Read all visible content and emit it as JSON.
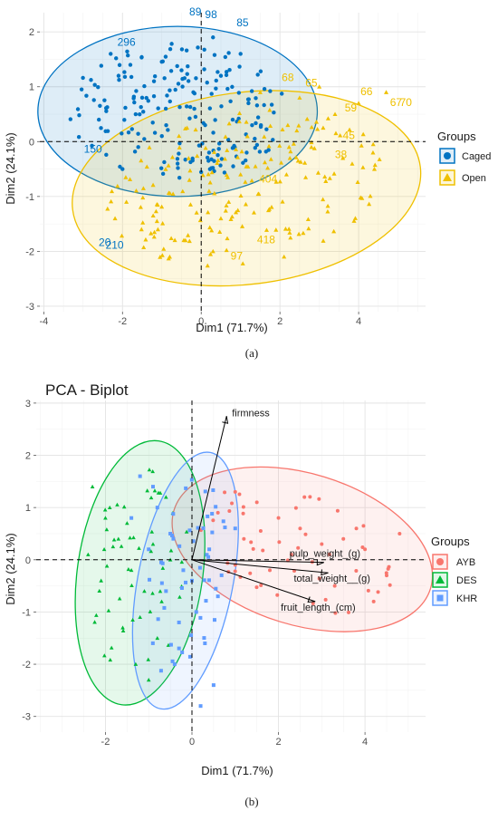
{
  "chart_data": [
    {
      "panel": "a",
      "type": "scatter",
      "title": "",
      "caption": "(a)",
      "xlabel": "Dim1 (71.7%)",
      "ylabel": "Dim2 (24.1%)",
      "xlim": [
        -4.1,
        5.7
      ],
      "ylim": [
        -3.1,
        2.35
      ],
      "xticks": [
        -4,
        -2,
        0,
        2,
        4
      ],
      "yticks": [
        -3,
        -2,
        -1,
        0,
        1,
        2
      ],
      "grid": true,
      "legend_position": "right",
      "legend_title": "Groups",
      "series": [
        {
          "name": "Caged",
          "marker": "circle",
          "color": "#0073C2",
          "point_count": 300,
          "points": [
            [
              -2.3,
              1.6
            ],
            [
              -2.1,
              1.2
            ],
            [
              -1.8,
              1.4
            ],
            [
              -1.5,
              0.8
            ],
            [
              -2.6,
              0.4
            ],
            [
              -1.2,
              1.1
            ],
            [
              -0.9,
              0.6
            ],
            [
              -0.5,
              1.3
            ],
            [
              -0.2,
              0.9
            ],
            [
              0.1,
              0.3
            ],
            [
              0.3,
              1.9
            ],
            [
              0.5,
              1.2
            ],
            [
              0.8,
              0.4
            ],
            [
              1.0,
              1.6
            ],
            [
              1.2,
              0.7
            ],
            [
              -1.0,
              0.1
            ],
            [
              -1.6,
              -0.1
            ],
            [
              -2.0,
              -0.5
            ],
            [
              -0.6,
              -0.4
            ],
            [
              0.2,
              -0.2
            ]
          ],
          "labels": [
            {
              "text": "89",
              "x": -0.15,
              "y": 2.3
            },
            {
              "text": "98",
              "x": 0.25,
              "y": 2.25
            },
            {
              "text": "85",
              "x": 1.05,
              "y": 2.1
            },
            {
              "text": "296",
              "x": -1.9,
              "y": 1.75
            },
            {
              "text": "150",
              "x": -2.75,
              "y": -0.2
            },
            {
              "text": "20",
              "x": -2.45,
              "y": -1.9
            },
            {
              "text": "210",
              "x": -2.2,
              "y": -1.95
            }
          ]
        },
        {
          "name": "Open",
          "marker": "triangle",
          "color": "#EFC000",
          "point_count": 300,
          "points": [
            [
              2.5,
              0.8
            ],
            [
              3.0,
              1.0
            ],
            [
              3.4,
              0.5
            ],
            [
              4.0,
              0.7
            ],
            [
              4.7,
              0.9
            ],
            [
              2.8,
              -0.1
            ],
            [
              3.6,
              -0.3
            ],
            [
              4.4,
              -0.5
            ],
            [
              0.2,
              -0.9
            ],
            [
              0.5,
              -1.4
            ],
            [
              0.3,
              -2.0
            ],
            [
              -0.4,
              -1.8
            ],
            [
              -1.1,
              -1.6
            ],
            [
              -0.8,
              -2.1
            ],
            [
              -1.9,
              -1.1
            ],
            [
              1.0,
              -0.6
            ],
            [
              -0.3,
              -0.7
            ],
            [
              2.2,
              0.3
            ],
            [
              1.5,
              0.9
            ],
            [
              0.7,
              -1.1
            ]
          ],
          "labels": [
            {
              "text": "68",
              "x": 2.2,
              "y": 1.1
            },
            {
              "text": "65",
              "x": 2.8,
              "y": 1.0
            },
            {
              "text": "66",
              "x": 4.2,
              "y": 0.85
            },
            {
              "text": "67",
              "x": 4.95,
              "y": 0.65
            },
            {
              "text": "70",
              "x": 5.2,
              "y": 0.65
            },
            {
              "text": "59",
              "x": 3.8,
              "y": 0.55
            },
            {
              "text": "45",
              "x": 3.75,
              "y": 0.05
            },
            {
              "text": "38",
              "x": 3.55,
              "y": -0.3
            },
            {
              "text": "404",
              "x": 1.7,
              "y": -0.75
            },
            {
              "text": "418",
              "x": 1.65,
              "y": -1.85
            },
            {
              "text": "97",
              "x": 0.9,
              "y": -2.15
            }
          ]
        }
      ],
      "ellipses": [
        {
          "group": "Caged",
          "center": [
            -0.6,
            0.55
          ],
          "radii": [
            3.55,
            1.55
          ],
          "rotation_deg": 0
        },
        {
          "group": "Open",
          "center": [
            1.15,
            -0.85
          ],
          "radii": [
            4.45,
            1.75
          ],
          "rotation_deg": -7
        }
      ]
    },
    {
      "panel": "b",
      "type": "scatter",
      "title": "PCA - Biplot",
      "caption": "(b)",
      "xlabel": "Dim1 (71.7%)",
      "ylabel": "Dim2 (24.1%)",
      "xlim": [
        -3.6,
        5.4
      ],
      "ylim": [
        -3.3,
        3.05
      ],
      "xticks": [
        -2,
        0,
        2,
        4
      ],
      "yticks": [
        -3,
        -2,
        -1,
        0,
        1,
        2,
        3
      ],
      "grid": true,
      "legend_position": "right",
      "legend_title": "Groups",
      "series": [
        {
          "name": "AYB",
          "marker": "circle",
          "color": "#F8766D",
          "points": [
            [
              1.0,
              1.3
            ],
            [
              1.5,
              1.1
            ],
            [
              2.0,
              0.8
            ],
            [
              2.5,
              0.6
            ],
            [
              3.0,
              0.3
            ],
            [
              3.5,
              0.4
            ],
            [
              4.0,
              0.2
            ],
            [
              4.5,
              -0.3
            ],
            [
              4.8,
              0.5
            ],
            [
              1.2,
              0.4
            ],
            [
              1.8,
              -0.2
            ],
            [
              2.3,
              0.1
            ],
            [
              3.3,
              -0.5
            ],
            [
              0.6,
              0.9
            ],
            [
              2.6,
              1.2
            ],
            [
              3.8,
              0.6
            ],
            [
              4.2,
              -0.8
            ],
            [
              1.0,
              -0.1
            ]
          ]
        },
        {
          "name": "DES",
          "marker": "triangle",
          "color": "#00BA38",
          "points": [
            [
              -2.3,
              1.4
            ],
            [
              -2.0,
              0.8
            ],
            [
              -1.7,
              0.4
            ],
            [
              -1.4,
              -0.2
            ],
            [
              -2.4,
              0.1
            ],
            [
              -1.1,
              -0.6
            ],
            [
              -0.8,
              -1.5
            ],
            [
              -1.3,
              -2.0
            ],
            [
              -1.0,
              -2.3
            ],
            [
              -1.9,
              1.0
            ],
            [
              -1.5,
              0.7
            ],
            [
              -0.6,
              1.2
            ],
            [
              -0.9,
              0.3
            ],
            [
              -1.2,
              -1.1
            ],
            [
              -0.5,
              0.0
            ],
            [
              -2.1,
              -0.4
            ],
            [
              -1.6,
              -1.3
            ],
            [
              -0.7,
              -0.8
            ]
          ]
        },
        {
          "name": "KHR",
          "marker": "square",
          "color": "#619CFF",
          "points": [
            [
              -1.2,
              1.6
            ],
            [
              -0.8,
              1.0
            ],
            [
              -0.5,
              0.5
            ],
            [
              -0.2,
              -0.2
            ],
            [
              0.1,
              -1.0
            ],
            [
              0.3,
              -1.6
            ],
            [
              -0.4,
              -2.0
            ],
            [
              0.5,
              -2.4
            ],
            [
              -1.0,
              0.2
            ],
            [
              -0.6,
              -0.6
            ],
            [
              0.0,
              -0.4
            ],
            [
              0.4,
              0.2
            ],
            [
              -0.9,
              1.4
            ],
            [
              0.2,
              -2.8
            ],
            [
              1.0,
              0.6
            ],
            [
              -0.3,
              -1.2
            ],
            [
              0.6,
              -0.7
            ],
            [
              -1.4,
              0.8
            ]
          ]
        }
      ],
      "ellipses": [
        {
          "group": "AYB",
          "center": [
            2.55,
            0.2
          ],
          "radii": [
            3.1,
            1.45
          ],
          "rotation_deg": 17
        },
        {
          "group": "DES",
          "center": [
            -1.2,
            -0.25
          ],
          "radii": [
            1.45,
            2.55
          ],
          "rotation_deg": 8
        },
        {
          "group": "KHR",
          "center": [
            -0.15,
            -0.4
          ],
          "radii": [
            1.1,
            2.5
          ],
          "rotation_deg": 11
        }
      ],
      "vectors": [
        {
          "name": "firmness",
          "x": 0.8,
          "y": 2.75
        },
        {
          "name": "pulp_weight_(g)",
          "x": 3.05,
          "y": -0.05
        },
        {
          "name": "total_weight__(g)",
          "x": 3.15,
          "y": -0.25
        },
        {
          "name": "fruit_length_(cm)",
          "x": 2.85,
          "y": -0.8
        }
      ]
    }
  ]
}
